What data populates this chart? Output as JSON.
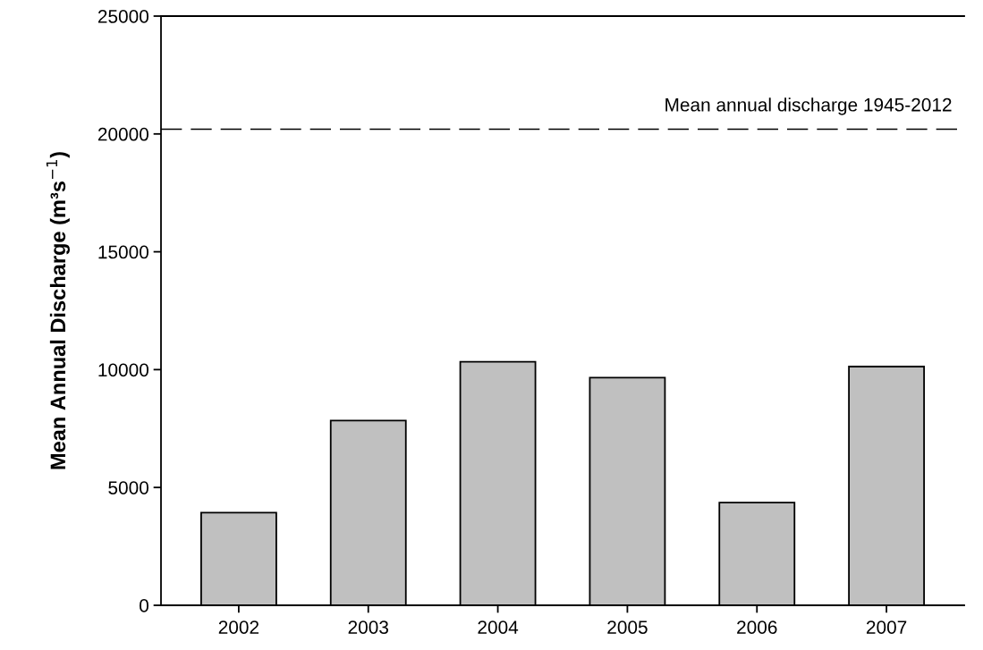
{
  "chart_data": {
    "type": "bar",
    "ylabel": "Mean Annual Discharge (m³s$^{−1}$)",
    "categories": [
      "2002",
      "2003",
      "2004",
      "2005",
      "2006",
      "2007"
    ],
    "values": [
      3930,
      7840,
      10330,
      9660,
      4360,
      10130
    ],
    "color": "#c0c0c0",
    "ylim": [
      0,
      25000
    ],
    "yticks": [
      0,
      5000,
      10000,
      15000,
      20000,
      25000
    ],
    "grid": false,
    "ref_lines": [
      {
        "axis": "y",
        "value": 20200,
        "label": "Mean annual discharge 1945-2012",
        "color": "#000000",
        "line_style": "dashed"
      }
    ]
  }
}
